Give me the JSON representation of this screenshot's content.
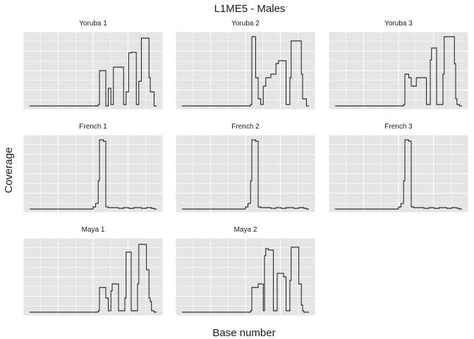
{
  "chart_data": {
    "type": "line",
    "title": "L1ME5 - Males",
    "xlabel": "Base number",
    "ylabel": "Coverage",
    "grid": true,
    "facet_order": [
      "Yoruba 1",
      "Yoruba 2",
      "Yoruba 3",
      "French 1",
      "French 2",
      "French 3",
      "Maya 1",
      "Maya 2"
    ],
    "panel_background": "#e5e5e5",
    "grid_color": "#ffffff",
    "line_color": "#000000",
    "x": [
      0,
      5,
      10,
      15,
      20,
      25,
      30,
      35,
      40,
      45,
      50,
      52,
      54,
      55,
      56,
      58,
      60,
      62,
      64,
      65,
      66,
      68,
      70,
      72,
      74,
      75,
      76,
      78,
      80,
      82,
      84,
      85,
      86,
      88,
      90,
      92,
      94,
      95,
      96,
      98,
      100
    ],
    "series": [
      {
        "name": "Yoruba 1",
        "values": [
          0,
          0,
          0,
          0,
          0,
          0,
          0,
          0,
          0,
          0,
          0,
          0,
          2,
          50,
          50,
          50,
          0,
          25,
          2,
          2,
          55,
          55,
          55,
          55,
          2,
          2,
          20,
          75,
          76,
          76,
          2,
          2,
          35,
          96,
          96,
          96,
          40,
          20,
          20,
          0,
          0
        ]
      },
      {
        "name": "Yoruba 2",
        "values": [
          0,
          0,
          0,
          0,
          0,
          0,
          0,
          0,
          0,
          0,
          0,
          0,
          2,
          98,
          98,
          40,
          10,
          2,
          28,
          28,
          40,
          40,
          45,
          45,
          60,
          60,
          64,
          64,
          64,
          2,
          2,
          40,
          92,
          92,
          92,
          92,
          45,
          10,
          10,
          0,
          0
        ]
      },
      {
        "name": "Yoruba 3",
        "values": [
          0,
          0,
          0,
          0,
          0,
          0,
          0,
          0,
          0,
          0,
          0,
          0,
          2,
          45,
          45,
          40,
          28,
          28,
          40,
          40,
          40,
          40,
          40,
          2,
          2,
          65,
          82,
          82,
          2,
          2,
          2,
          45,
          98,
          98,
          98,
          98,
          60,
          10,
          2,
          0,
          0
        ]
      },
      {
        "name": "French 1",
        "values": [
          0,
          0,
          0,
          0,
          0,
          0,
          0,
          0,
          0,
          0,
          3,
          8,
          40,
          98,
          98,
          96,
          3,
          2,
          2,
          2,
          2,
          2,
          1,
          1,
          2,
          2,
          2,
          1,
          1,
          2,
          2,
          2,
          2,
          1,
          1,
          2,
          2,
          2,
          1,
          0,
          0
        ]
      },
      {
        "name": "French 2",
        "values": [
          0,
          0,
          0,
          0,
          0,
          0,
          0,
          0,
          0,
          0,
          3,
          8,
          40,
          98,
          98,
          96,
          3,
          2,
          2,
          2,
          2,
          2,
          1,
          1,
          2,
          2,
          2,
          1,
          1,
          2,
          2,
          2,
          2,
          1,
          1,
          2,
          2,
          2,
          1,
          0,
          0
        ]
      },
      {
        "name": "French 3",
        "values": [
          0,
          0,
          0,
          0,
          0,
          0,
          0,
          0,
          0,
          0,
          3,
          8,
          40,
          98,
          98,
          96,
          3,
          2,
          2,
          2,
          2,
          2,
          1,
          1,
          2,
          2,
          2,
          1,
          1,
          2,
          2,
          2,
          2,
          1,
          1,
          2,
          2,
          2,
          1,
          0,
          0
        ]
      },
      {
        "name": "Maya 1",
        "values": [
          0,
          0,
          0,
          0,
          0,
          0,
          0,
          0,
          0,
          0,
          0,
          0,
          2,
          35,
          35,
          35,
          20,
          2,
          30,
          40,
          40,
          40,
          2,
          2,
          2,
          20,
          85,
          85,
          2,
          2,
          2,
          40,
          96,
          96,
          96,
          60,
          20,
          15,
          2,
          0,
          0
        ]
      },
      {
        "name": "Maya 2",
        "values": [
          0,
          0,
          0,
          0,
          0,
          0,
          0,
          0,
          0,
          0,
          0,
          0,
          2,
          35,
          35,
          35,
          40,
          40,
          2,
          80,
          90,
          88,
          88,
          2,
          2,
          55,
          55,
          55,
          50,
          2,
          2,
          45,
          92,
          92,
          92,
          40,
          10,
          2,
          0,
          0,
          0
        ]
      }
    ]
  }
}
